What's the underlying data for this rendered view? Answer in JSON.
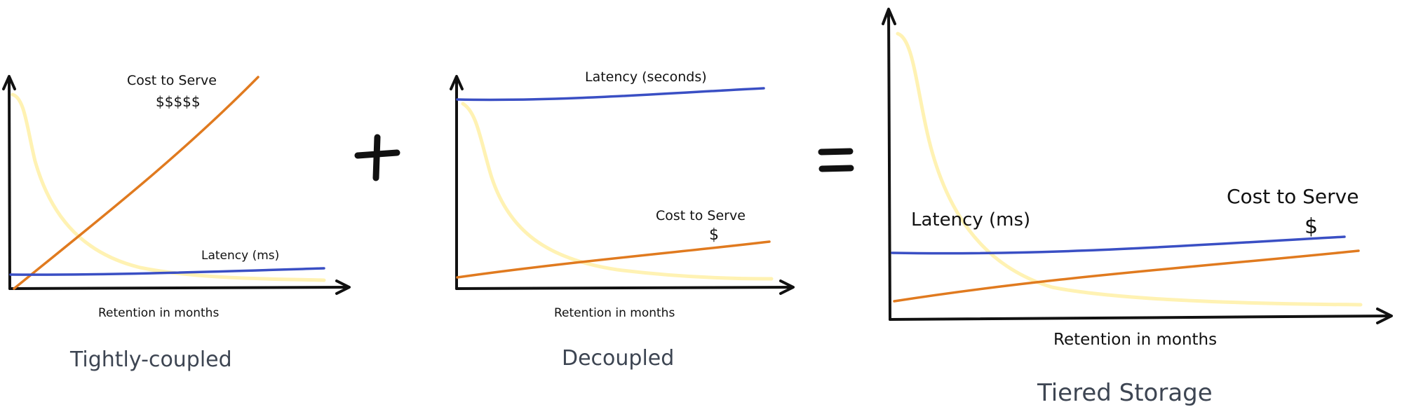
{
  "colors": {
    "latency": "#3a4fc4",
    "cost": "#e07a1f",
    "retention_curve": "#fff2b3",
    "axis": "#111111",
    "caption": "#3d4552"
  },
  "operators": {
    "plus": "+",
    "equals": "="
  },
  "panels": [
    {
      "caption": "Tightly-coupled",
      "xlabel": "Retention in months",
      "latency_label": "Latency (ms)",
      "cost_label": "Cost to Serve",
      "cost_symbol": "$$$$$",
      "latency_trend": "flat-low",
      "cost_trend": "steep-rise"
    },
    {
      "caption": "Decoupled",
      "xlabel": "Retention in months",
      "latency_label": "Latency (seconds)",
      "cost_label": "Cost to Serve",
      "cost_symbol": "$",
      "latency_trend": "flat-high",
      "cost_trend": "gentle-rise"
    },
    {
      "caption": "Tiered Storage",
      "xlabel": "Retention in months",
      "latency_label": "Latency (ms)",
      "cost_label": "Cost to Serve",
      "cost_symbol": "$",
      "latency_trend": "flat-low",
      "cost_trend": "gentle-rise"
    }
  ]
}
